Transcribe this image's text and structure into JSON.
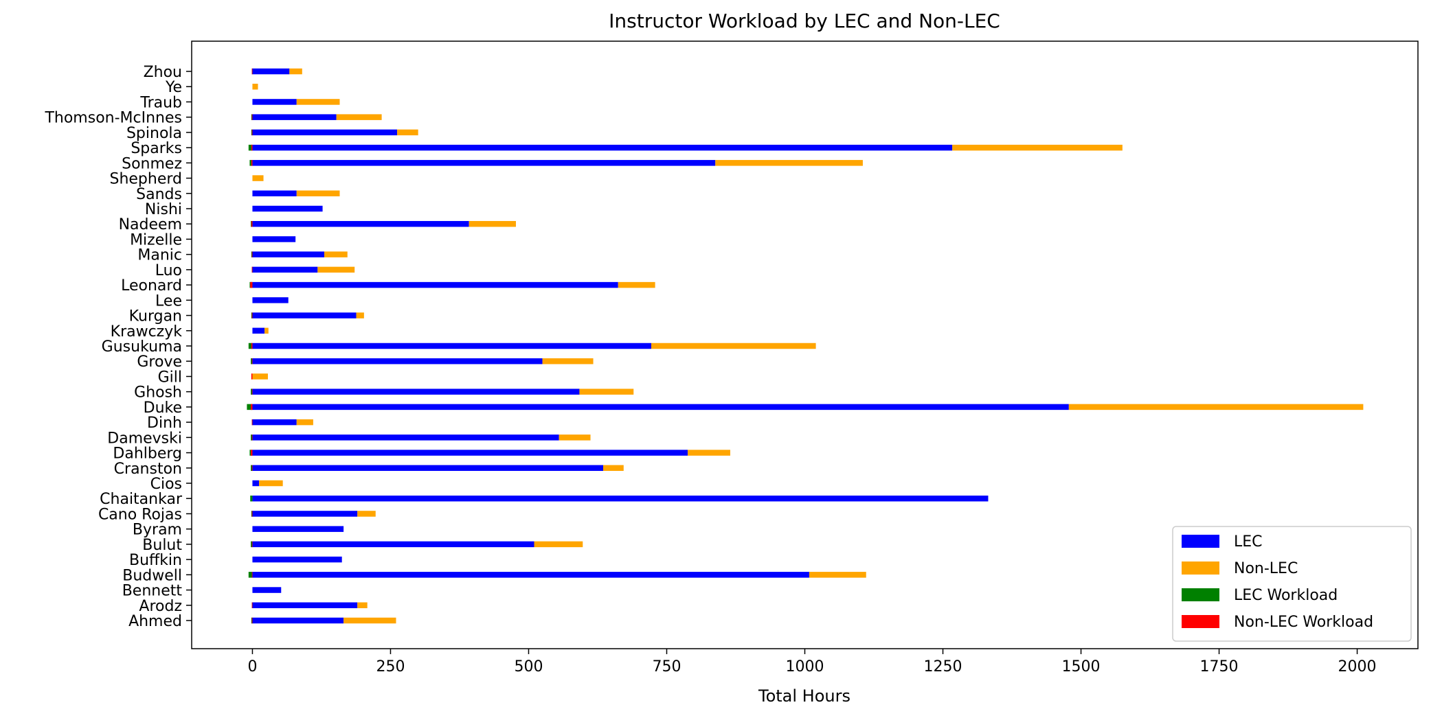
{
  "chart_data": {
    "type": "bar",
    "orientation": "horizontal",
    "stacked": true,
    "title": "Instructor Workload by LEC and Non-LEC",
    "xlabel": "Total Hours",
    "ylabel": "",
    "xlim": [
      -110,
      2110
    ],
    "x_ticks": [
      0,
      250,
      500,
      750,
      1000,
      1250,
      1500,
      1750,
      2000
    ],
    "x_tick_labels": [
      "0",
      "250",
      "500",
      "750",
      "1000",
      "1250",
      "1500",
      "1750",
      "2000"
    ],
    "grid": false,
    "legend_position": "lower-right",
    "categories": [
      "Ahmed",
      "Arodz",
      "Bennett",
      "Budwell",
      "Buffkin",
      "Bulut",
      "Byram",
      "Cano Rojas",
      "Chaitankar",
      "Cios",
      "Cranston",
      "Dahlberg",
      "Damevski",
      "Dinh",
      "Duke",
      "Ghosh",
      "Gill",
      "Grove",
      "Gusukuma",
      "Krawczyk",
      "Kurgan",
      "Lee",
      "Leonard",
      "Luo",
      "Manic",
      "Mizelle",
      "Nadeem",
      "Nishi",
      "Sands",
      "Shepherd",
      "Sonmez",
      "Sparks",
      "Spinola",
      "Thomson-McInnes",
      "Traub",
      "Ye",
      "Zhou"
    ],
    "series": [
      {
        "name": "LEC",
        "color": "#0000ff",
        "values": [
          165,
          190,
          52,
          1008,
          162,
          510,
          165,
          190,
          1332,
          12,
          635,
          788,
          555,
          80,
          1478,
          592,
          0,
          525,
          722,
          22,
          188,
          65,
          662,
          118,
          130,
          78,
          392,
          127,
          80,
          0,
          838,
          1267,
          262,
          152,
          80,
          0,
          67
        ]
      },
      {
        "name": "Non-LEC",
        "color": "#ffa500",
        "values": [
          95,
          18,
          0,
          103,
          0,
          88,
          0,
          33,
          0,
          43,
          37,
          77,
          57,
          30,
          533,
          98,
          28,
          92,
          298,
          7,
          14,
          0,
          67,
          67,
          42,
          0,
          85,
          0,
          78,
          20,
          267,
          308,
          38,
          82,
          78,
          10,
          23
        ]
      },
      {
        "name": "LEC Workload",
        "color": "#008000",
        "values": [
          -2,
          -1,
          0,
          -7,
          0,
          -3,
          0,
          -2,
          -4,
          0,
          -3,
          -5,
          -3,
          -1,
          -10,
          -3,
          0,
          -3,
          -7,
          0,
          -2,
          0,
          -5,
          -1,
          -2,
          0,
          -3,
          0,
          0,
          0,
          -5,
          -7,
          -2,
          -2,
          0,
          0,
          -1
        ]
      },
      {
        "name": "Non-LEC Workload",
        "color": "#ff0000",
        "values": [
          -1,
          -1,
          0,
          -1,
          0,
          -1,
          0,
          -1,
          0,
          0,
          -1,
          -3,
          -1,
          -1,
          -3,
          -1,
          -2,
          -1,
          -2,
          0,
          -1,
          0,
          -4,
          -1,
          -1,
          0,
          -2,
          0,
          0,
          0,
          -2,
          -2,
          -1,
          -1,
          0,
          0,
          -1
        ]
      }
    ]
  }
}
